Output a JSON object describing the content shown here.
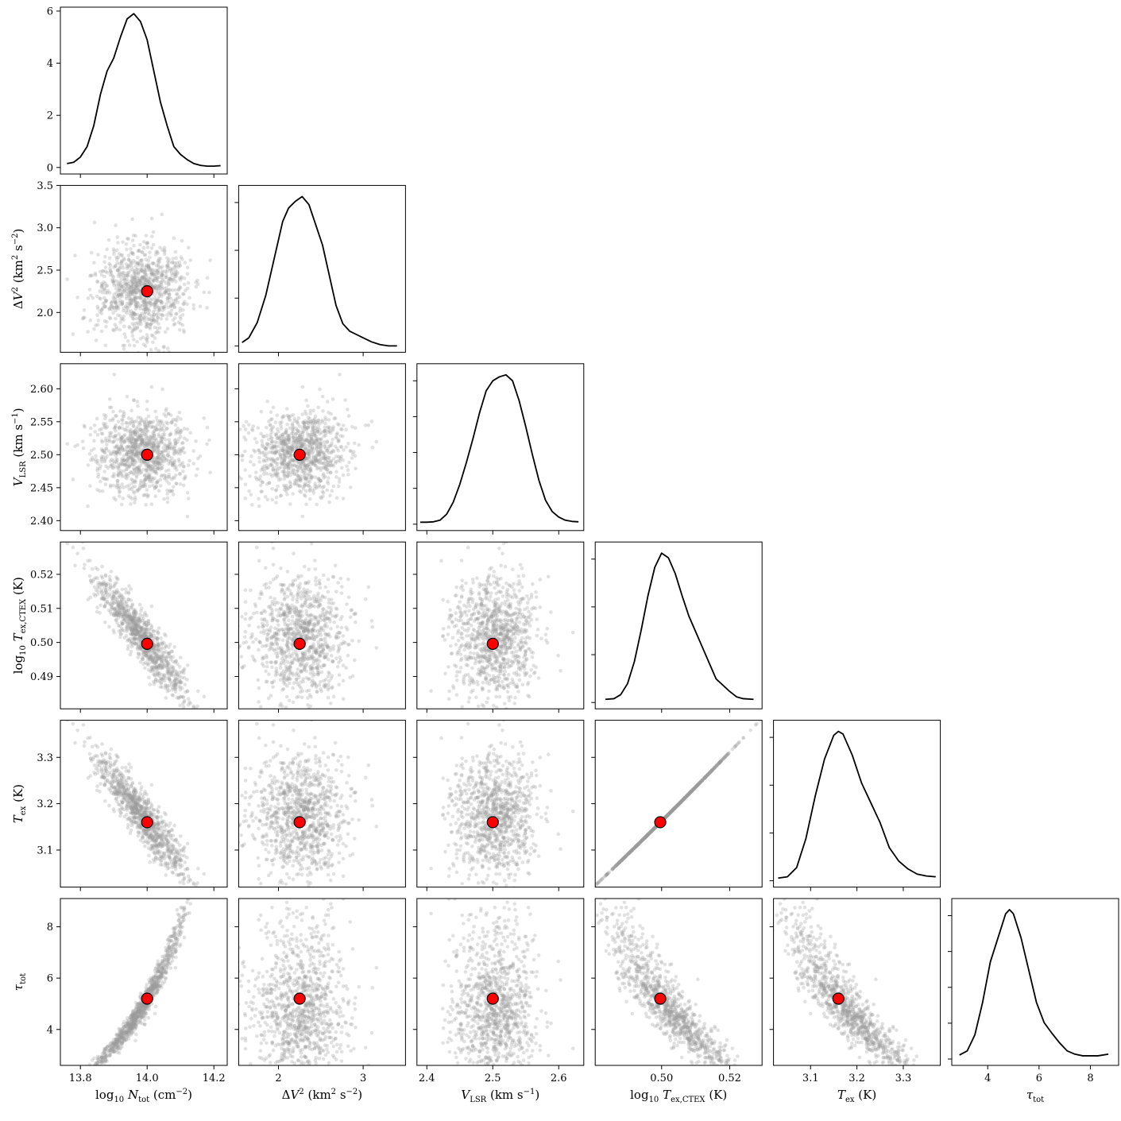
{
  "chart_data": {
    "type": "corner",
    "parameters": [
      {
        "key": "log10_N_tot",
        "label": "log10 N_tot (cm^-2)",
        "truth": 14.0,
        "lim": [
          13.74,
          14.24
        ],
        "ticks": [
          13.8,
          14.0,
          14.2
        ],
        "tick_labels": [
          "13.8",
          "14.0",
          "14.2"
        ]
      },
      {
        "key": "dV2",
        "label": "ΔV^2 (km^2 s^-2)",
        "truth": 2.25,
        "lim": [
          1.53,
          3.5
        ],
        "ticks": [
          2,
          3
        ],
        "tick_labels": [
          "2",
          "3"
        ]
      },
      {
        "key": "V_LSR",
        "label": "V_LSR (km s^-1)",
        "truth": 2.5,
        "lim": [
          2.385,
          2.638
        ],
        "ticks": [
          2.4,
          2.5,
          2.6
        ],
        "tick_labels": [
          "2.4",
          "2.5",
          "2.6"
        ]
      },
      {
        "key": "log10_T_ex_CTEX",
        "label": "log10 T_ex,CTEX (K)",
        "truth": 0.4996,
        "lim": [
          0.4805,
          0.5295
        ],
        "ticks": [
          0.5,
          0.52
        ],
        "tick_labels": [
          "0.50",
          "0.52"
        ]
      },
      {
        "key": "T_ex",
        "label": "T_ex (K)",
        "truth": 3.16,
        "lim": [
          3.02,
          3.38
        ],
        "ticks": [
          3.1,
          3.2,
          3.3
        ],
        "tick_labels": [
          "3.1",
          "3.2",
          "3.3"
        ]
      },
      {
        "key": "tau_tot",
        "label": "τ_tot",
        "truth": 5.2,
        "lim": [
          2.6,
          9.1
        ],
        "ticks": [
          4,
          6,
          8
        ],
        "tick_labels": [
          "4",
          "6",
          "8"
        ]
      }
    ],
    "row_axes": [
      {
        "lim": [
          -0.25,
          6.15
        ],
        "ticks": [
          0,
          2,
          4,
          6
        ],
        "tick_labels": [
          "0",
          "2",
          "4",
          "6"
        ]
      },
      {
        "lim": [
          1.53,
          3.5
        ],
        "ticks": [
          2.0,
          2.5,
          3.0,
          3.5
        ],
        "tick_labels": [
          "2.0",
          "2.5",
          "3.0",
          "3.5"
        ]
      },
      {
        "lim": [
          2.385,
          2.638
        ],
        "ticks": [
          2.4,
          2.45,
          2.5,
          2.55,
          2.6
        ],
        "tick_labels": [
          "2.40",
          "2.45",
          "2.50",
          "2.55",
          "2.60"
        ]
      },
      {
        "lim": [
          0.4805,
          0.5295
        ],
        "ticks": [
          0.49,
          0.5,
          0.51,
          0.52
        ],
        "tick_labels": [
          "0.49",
          "0.50",
          "0.51",
          "0.52"
        ]
      },
      {
        "lim": [
          3.02,
          3.38
        ],
        "ticks": [
          3.1,
          3.2,
          3.3
        ],
        "tick_labels": [
          "3.1",
          "3.2",
          "3.3"
        ]
      },
      {
        "lim": [
          2.6,
          9.1
        ],
        "ticks": [
          4,
          6,
          8
        ],
        "tick_labels": [
          "4",
          "6",
          "8"
        ]
      }
    ],
    "marginals": [
      {
        "x": [
          13.76,
          13.78,
          13.8,
          13.82,
          13.84,
          13.86,
          13.88,
          13.9,
          13.92,
          13.94,
          13.96,
          13.98,
          14.0,
          14.02,
          14.04,
          14.06,
          14.08,
          14.1,
          14.12,
          14.14,
          14.16,
          14.18,
          14.2,
          14.22
        ],
        "y": [
          0.15,
          0.2,
          0.4,
          0.8,
          1.6,
          2.8,
          3.7,
          4.2,
          5.0,
          5.7,
          5.9,
          5.6,
          4.9,
          3.7,
          2.5,
          1.6,
          0.8,
          0.5,
          0.3,
          0.15,
          0.08,
          0.05,
          0.05,
          0.07
        ]
      },
      {
        "x": [
          1.57,
          1.65,
          1.75,
          1.85,
          1.95,
          2.05,
          2.12,
          2.2,
          2.28,
          2.36,
          2.44,
          2.52,
          2.6,
          2.68,
          2.76,
          2.84,
          2.92,
          3.0,
          3.1,
          3.2,
          3.3,
          3.4
        ],
        "y": [
          0.05,
          0.12,
          0.35,
          0.75,
          1.3,
          1.85,
          2.05,
          2.15,
          2.22,
          2.1,
          1.8,
          1.5,
          1.05,
          0.6,
          0.33,
          0.22,
          0.17,
          0.12,
          0.06,
          0.02,
          0.0,
          0.0
        ]
      },
      {
        "x": [
          2.39,
          2.4,
          2.41,
          2.42,
          2.43,
          2.44,
          2.45,
          2.46,
          2.47,
          2.48,
          2.49,
          2.5,
          2.51,
          2.52,
          2.53,
          2.54,
          2.55,
          2.56,
          2.57,
          2.58,
          2.59,
          2.6,
          2.61,
          2.62,
          2.63
        ],
        "y": [
          0.05,
          0.05,
          0.06,
          0.1,
          0.25,
          0.55,
          1.0,
          1.55,
          2.15,
          2.8,
          3.35,
          3.6,
          3.7,
          3.75,
          3.6,
          3.1,
          2.45,
          1.75,
          1.1,
          0.6,
          0.32,
          0.18,
          0.1,
          0.07,
          0.06
        ]
      },
      {
        "x": [
          0.4835,
          0.486,
          0.488,
          0.49,
          0.492,
          0.494,
          0.496,
          0.498,
          0.5,
          0.502,
          0.504,
          0.506,
          0.508,
          0.51,
          0.512,
          0.514,
          0.516,
          0.518,
          0.52,
          0.522,
          0.524,
          0.527
        ],
        "y": [
          0.1,
          0.12,
          0.25,
          0.6,
          1.3,
          2.3,
          3.4,
          4.3,
          4.75,
          4.6,
          4.1,
          3.4,
          2.75,
          2.25,
          1.75,
          1.25,
          0.75,
          0.55,
          0.35,
          0.18,
          0.12,
          0.1
        ]
      },
      {
        "x": [
          3.03,
          3.05,
          3.07,
          3.09,
          3.11,
          3.13,
          3.15,
          3.16,
          3.17,
          3.19,
          3.21,
          3.23,
          3.25,
          3.27,
          3.29,
          3.31,
          3.33,
          3.35,
          3.37
        ],
        "y": [
          0.1,
          0.15,
          0.5,
          1.6,
          3.2,
          4.6,
          5.5,
          5.65,
          5.55,
          4.75,
          3.7,
          2.95,
          2.2,
          1.25,
          0.75,
          0.45,
          0.25,
          0.18,
          0.15
        ]
      },
      {
        "x": [
          2.9,
          3.2,
          3.5,
          3.8,
          4.1,
          4.4,
          4.7,
          4.85,
          5.0,
          5.3,
          5.6,
          5.9,
          6.2,
          6.5,
          6.8,
          7.1,
          7.4,
          7.7,
          8.0,
          8.3,
          8.7
        ],
        "y": [
          0.05,
          0.1,
          0.3,
          0.7,
          1.2,
          1.5,
          1.8,
          1.85,
          1.8,
          1.5,
          1.1,
          0.7,
          0.45,
          0.32,
          0.2,
          0.1,
          0.06,
          0.04,
          0.04,
          0.04,
          0.06
        ]
      }
    ],
    "samples": {
      "count": 1000,
      "means": [
        13.985,
        2.26,
        2.505,
        0.5015,
        3.175,
        4.95
      ],
      "sds": [
        0.07,
        0.28,
        0.034,
        0.0075,
        0.055,
        0.95
      ],
      "relations": {
        "log10_T_ex_CTEX": "linear in log10_N_tot (slope -0.12) with small scatter",
        "T_ex": "10^log10_T_ex_CTEX",
        "tau_tot": "increasing in log10_N_tot, decreasing in T_ex"
      },
      "color": "#9a9a9a",
      "alpha": 0.3
    },
    "truth_marker": {
      "color": "#ff0000",
      "edge_color": "#000000"
    },
    "line_color": "#000000"
  }
}
